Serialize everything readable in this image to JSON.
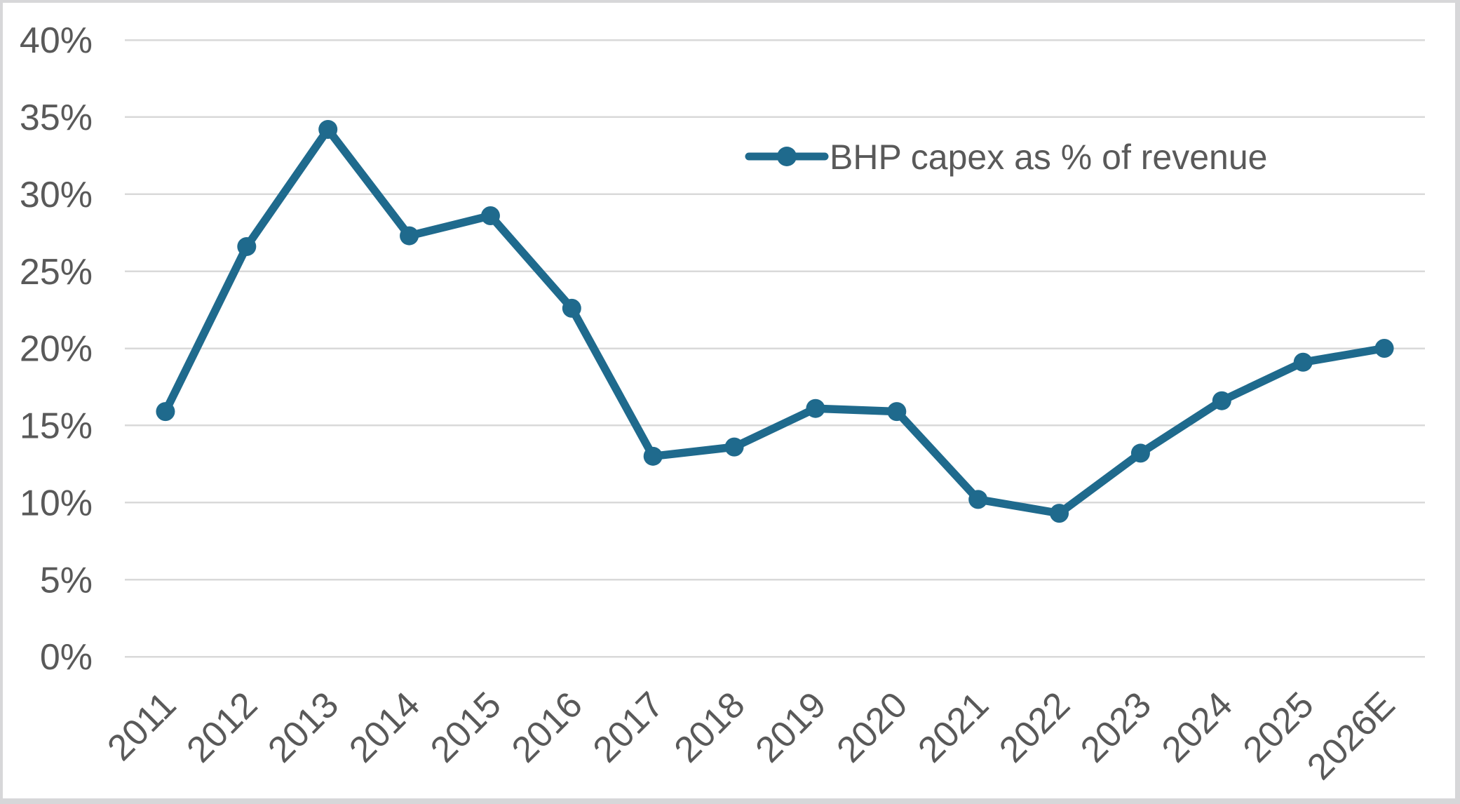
{
  "chart_data": {
    "type": "line",
    "title": "",
    "xlabel": "",
    "ylabel": "",
    "categories": [
      "2011",
      "2012",
      "2013",
      "2014",
      "2015",
      "2016",
      "2017",
      "2018",
      "2019",
      "2020",
      "2021",
      "2022",
      "2023",
      "2024",
      "2025",
      "2026E"
    ],
    "series": [
      {
        "name": "BHP capex as % of revenue",
        "values": [
          15.9,
          26.6,
          34.2,
          27.3,
          28.6,
          22.6,
          13.0,
          13.6,
          16.1,
          15.9,
          10.2,
          9.3,
          13.2,
          16.6,
          19.1,
          20.0
        ]
      }
    ],
    "ylim": [
      0,
      40
    ],
    "ytick_step": 5,
    "ytick_labels": [
      "0%",
      "5%",
      "10%",
      "15%",
      "20%",
      "25%",
      "30%",
      "35%",
      "40%"
    ],
    "grid": "horizontal-only",
    "legend_position": "inside-top-right",
    "legend_entries": [
      "BHP capex as % of revenue"
    ],
    "colors": {
      "series": "#1f6a8d",
      "gridline": "#d9d9d9",
      "text": "#595959",
      "frame_border": "#d7d7d9",
      "background": "#ffffff"
    }
  }
}
